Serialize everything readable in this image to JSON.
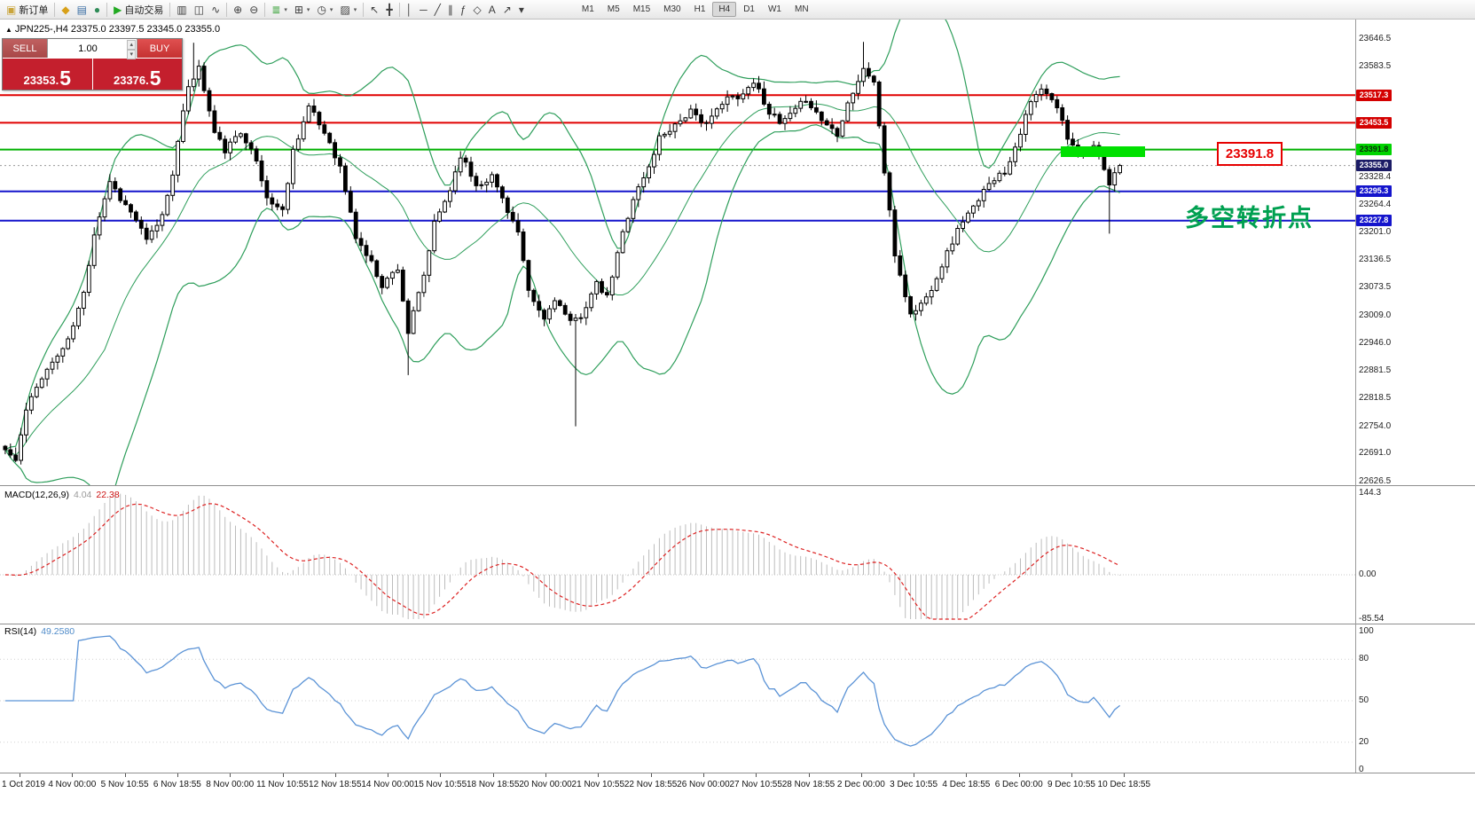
{
  "toolbar": {
    "caret_glyph": "▾",
    "groups": [
      {
        "items": [
          {
            "name": "new-order-button",
            "glyph": "▣",
            "glyph_color": "#caa53c",
            "label": "新订单"
          }
        ]
      },
      {
        "items": [
          {
            "name": "market-watch-icon",
            "glyph": "◆",
            "glyph_color": "#d8a018"
          },
          {
            "name": "data-window-icon",
            "glyph": "▤",
            "glyph_color": "#3a6ea5"
          },
          {
            "name": "navigator-icon",
            "glyph": "●",
            "glyph_color": "#2e8b57"
          }
        ]
      },
      {
        "items": [
          {
            "name": "auto-trading-button",
            "glyph": "▶",
            "glyph_color": "#22aa22",
            "label": "自动交易"
          }
        ]
      },
      {
        "items": [
          {
            "name": "bar-chart-button",
            "glyph": "▥"
          },
          {
            "name": "candlestick-chart-button",
            "glyph": "◫"
          },
          {
            "name": "line-chart-button",
            "glyph": "∿"
          }
        ]
      },
      {
        "items": [
          {
            "name": "zoom-in-button",
            "glyph": "⊕"
          },
          {
            "name": "zoom-out-button",
            "glyph": "⊖"
          }
        ]
      },
      {
        "items": [
          {
            "name": "indicators-button",
            "glyph": "≣",
            "glyph_color": "#2f9e2f",
            "caret": true
          },
          {
            "name": "tile-windows-button",
            "glyph": "⊞",
            "caret": true
          },
          {
            "name": "periods-button",
            "glyph": "◷",
            "caret": true
          },
          {
            "name": "templates-button",
            "glyph": "▨",
            "caret": true
          }
        ]
      },
      {
        "items": [
          {
            "name": "cursor-button",
            "glyph": "↖"
          },
          {
            "name": "crosshair-button",
            "glyph": "╋"
          }
        ]
      },
      {
        "items": [
          {
            "name": "vertical-line-button",
            "glyph": "│"
          },
          {
            "name": "horizontal-line-button",
            "glyph": "─"
          },
          {
            "name": "trendline-button",
            "glyph": "╱"
          },
          {
            "name": "equidistant-channel-button",
            "glyph": "∥"
          },
          {
            "name": "fibonacci-button",
            "glyph": "ƒ"
          },
          {
            "name": "ellipse-button",
            "glyph": "◇"
          },
          {
            "name": "text-button",
            "glyph": "A"
          },
          {
            "name": "arrow-label-button",
            "glyph": "↗"
          },
          {
            "name": "shapes-dropdown-button",
            "glyph": "▾"
          }
        ]
      }
    ],
    "timeframes": [
      "M1",
      "M5",
      "M15",
      "M30",
      "H1",
      "H4",
      "D1",
      "W1",
      "MN"
    ],
    "active_timeframe": "H4"
  },
  "symbol_info": {
    "marker": "▲",
    "text": "JPN225-,H4 23375.0 23397.5 23345.0 23355.0"
  },
  "trade_panel": {
    "sell_label": "SELL",
    "buy_label": "BUY",
    "volume": "1.00",
    "spin_up": "▴",
    "spin_down": "▾",
    "sell_price_main": "23353.",
    "sell_price_big": "5",
    "buy_price_main": "23376.",
    "buy_price_big": "5"
  },
  "annotations": {
    "price_callout": "23391.8",
    "cn_note": "多空转折点"
  },
  "price_axis": {
    "regular": [
      23646.5,
      23583.5,
      23328.4,
      23264.4,
      23201.0,
      23136.5,
      23073.5,
      23009.0,
      22946.0,
      22881.5,
      22818.5,
      22754.0,
      22691.0,
      22626.5
    ],
    "tags": [
      {
        "text": "23517.3",
        "price": 23517.3,
        "bg": "#d40000",
        "fg": "#ffffff"
      },
      {
        "text": "23453.5",
        "price": 23453.5,
        "bg": "#d40000",
        "fg": "#ffffff"
      },
      {
        "text": "23391.8",
        "price": 23391.8,
        "bg": "#00d400",
        "fg": "#0a2a0a"
      },
      {
        "text": "23355.0",
        "price": 23355.0,
        "bg": "#1c1c66",
        "fg": "#ffffff"
      },
      {
        "text": "23295.3",
        "price": 23295.3,
        "bg": "#1414cc",
        "fg": "#ffffff"
      },
      {
        "text": "23227.8",
        "price": 23227.8,
        "bg": "#1414cc",
        "fg": "#ffffff"
      }
    ]
  },
  "time_axis": {
    "labels": [
      "1 Oct 2019",
      "4 Nov 00:00",
      "5 Nov 10:55",
      "6 Nov 18:55",
      "8 Nov 00:00",
      "11 Nov 10:55",
      "12 Nov 18:55",
      "14 Nov 00:00",
      "15 Nov 10:55",
      "18 Nov 18:55",
      "20 Nov 00:00",
      "21 Nov 10:55",
      "22 Nov 18:55",
      "26 Nov 00:00",
      "27 Nov 10:55",
      "28 Nov 18:55",
      "2 Dec 00:00",
      "3 Dec 10:55",
      "4 Dec 18:55",
      "6 Dec 00:00",
      "9 Dec 10:55",
      "10 Dec 18:55"
    ]
  },
  "macd": {
    "header_label": "MACD(12,26,9)",
    "value_main": "4.04",
    "value_signal": "22.38",
    "axis_labels": [
      "144.3",
      "0.00",
      "-85.54"
    ],
    "bar_color": "#bcbcbc",
    "signal_color": "#dd2222"
  },
  "rsi": {
    "header_label": "RSI(14)",
    "value": "49.2580",
    "axis_labels": [
      "100",
      "80",
      "50",
      "20",
      "0"
    ],
    "line_color": "#5b93d6"
  },
  "chart_data": {
    "type": "candlestick",
    "symbol": "JPN225-",
    "timeframe": "H4",
    "ohlc": {
      "open": 23375.0,
      "high": 23397.5,
      "low": 23345.0,
      "close": 23355.0
    },
    "visible_price_range": [
      22618,
      23692
    ],
    "candle_count": 214,
    "up_color": "#ffffff",
    "down_color": "#000000",
    "outline_color": "#000000",
    "bollinger": {
      "period": 20,
      "deviation": 2,
      "color": "#2e9e5b"
    },
    "hlines": [
      {
        "price": 23517.3,
        "color": "#e00000"
      },
      {
        "price": 23453.5,
        "color": "#e00000"
      },
      {
        "price": 23391.8,
        "color": "#00b000"
      },
      {
        "price": 23295.3,
        "color": "#1414cc"
      },
      {
        "price": 23227.8,
        "color": "#1414cc"
      }
    ],
    "price_path_anchors": [
      [
        0,
        22700
      ],
      [
        2,
        22675
      ],
      [
        4,
        22790
      ],
      [
        7,
        22870
      ],
      [
        9,
        22900
      ],
      [
        12,
        22950
      ],
      [
        15,
        23060
      ],
      [
        17,
        23200
      ],
      [
        20,
        23320
      ],
      [
        22,
        23280
      ],
      [
        25,
        23230
      ],
      [
        27,
        23180
      ],
      [
        30,
        23240
      ],
      [
        32,
        23340
      ],
      [
        35,
        23540
      ],
      [
        37,
        23580
      ],
      [
        40,
        23430
      ],
      [
        42,
        23390
      ],
      [
        45,
        23430
      ],
      [
        47,
        23400
      ],
      [
        50,
        23280
      ],
      [
        53,
        23250
      ],
      [
        55,
        23390
      ],
      [
        58,
        23490
      ],
      [
        62,
        23410
      ],
      [
        64,
        23350
      ],
      [
        67,
        23190
      ],
      [
        70,
        23130
      ],
      [
        72,
        23080
      ],
      [
        75,
        23120
      ],
      [
        77,
        22970
      ],
      [
        80,
        23100
      ],
      [
        82,
        23220
      ],
      [
        85,
        23300
      ],
      [
        87,
        23380
      ],
      [
        90,
        23310
      ],
      [
        93,
        23330
      ],
      [
        95,
        23280
      ],
      [
        98,
        23200
      ],
      [
        100,
        23060
      ],
      [
        103,
        23000
      ],
      [
        105,
        23050
      ],
      [
        108,
        22990
      ],
      [
        110,
        23010
      ],
      [
        113,
        23080
      ],
      [
        115,
        23050
      ],
      [
        118,
        23200
      ],
      [
        120,
        23280
      ],
      [
        123,
        23350
      ],
      [
        125,
        23420
      ],
      [
        128,
        23450
      ],
      [
        131,
        23480
      ],
      [
        133,
        23450
      ],
      [
        136,
        23480
      ],
      [
        138,
        23510
      ],
      [
        141,
        23520
      ],
      [
        143,
        23550
      ],
      [
        146,
        23480
      ],
      [
        148,
        23450
      ],
      [
        151,
        23480
      ],
      [
        153,
        23510
      ],
      [
        156,
        23460
      ],
      [
        159,
        23430
      ],
      [
        161,
        23500
      ],
      [
        164,
        23575
      ],
      [
        166,
        23550
      ],
      [
        168,
        23340
      ],
      [
        170,
        23150
      ],
      [
        173,
        23010
      ],
      [
        176,
        23050
      ],
      [
        178,
        23100
      ],
      [
        181,
        23180
      ],
      [
        183,
        23230
      ],
      [
        186,
        23270
      ],
      [
        188,
        23320
      ],
      [
        191,
        23340
      ],
      [
        193,
        23400
      ],
      [
        196,
        23500
      ],
      [
        198,
        23530
      ],
      [
        201,
        23490
      ],
      [
        203,
        23420
      ],
      [
        206,
        23380
      ],
      [
        208,
        23400
      ],
      [
        211,
        23310
      ],
      [
        213,
        23355
      ]
    ],
    "wick_overrides": [
      {
        "i": 36,
        "high": 23638
      },
      {
        "i": 77,
        "low": 22872
      },
      {
        "i": 109,
        "low": 22754
      },
      {
        "i": 164,
        "high": 23640
      },
      {
        "i": 211,
        "low": 23198
      }
    ],
    "highlight_rect": {
      "price": 23391.8,
      "color": "#00e000"
    }
  }
}
